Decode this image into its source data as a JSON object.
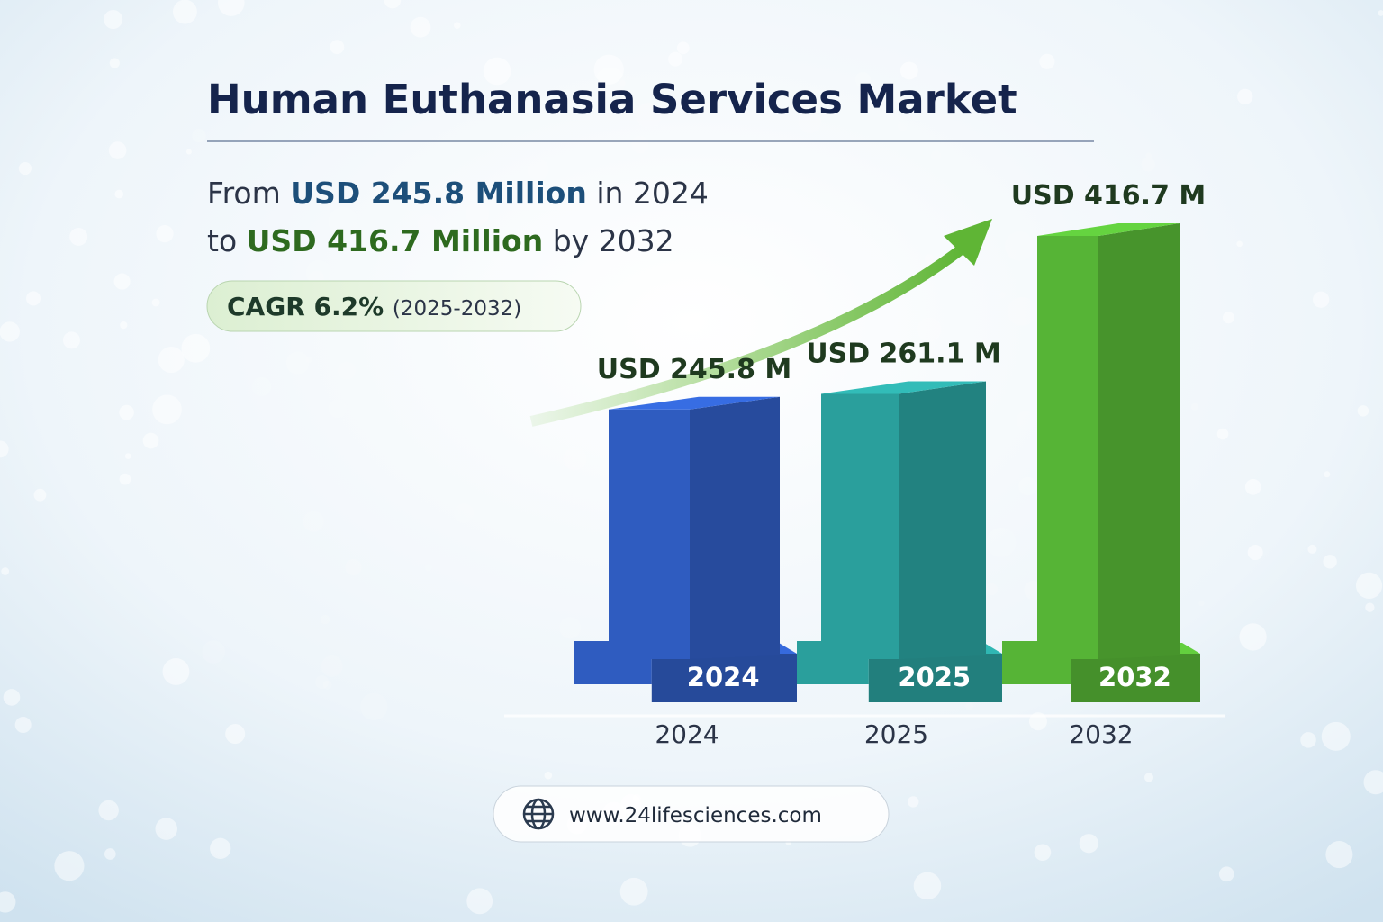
{
  "chart_data": {
    "type": "bar",
    "title": "Human Euthanasia Services Market",
    "headline": [
      [
        "From",
        "USD 245.8 Million",
        "in 2024"
      ],
      [
        "to",
        "USD 416.7 Million",
        "by 2032"
      ]
    ],
    "cagr": [
      "CAGR 6.2%",
      "(2025-2032)"
    ],
    "categories": [
      "2024",
      "2025",
      "2032"
    ],
    "values": [
      245.8,
      261.1,
      416.7
    ],
    "value_labels": [
      "USD 245.8 M",
      "USD 261.1 M",
      "USD 416.7 M"
    ],
    "colors": [
      "#2f5cc0",
      "#2a9f9c",
      "#56b436"
    ],
    "website": "www.24lifesciences.com"
  }
}
